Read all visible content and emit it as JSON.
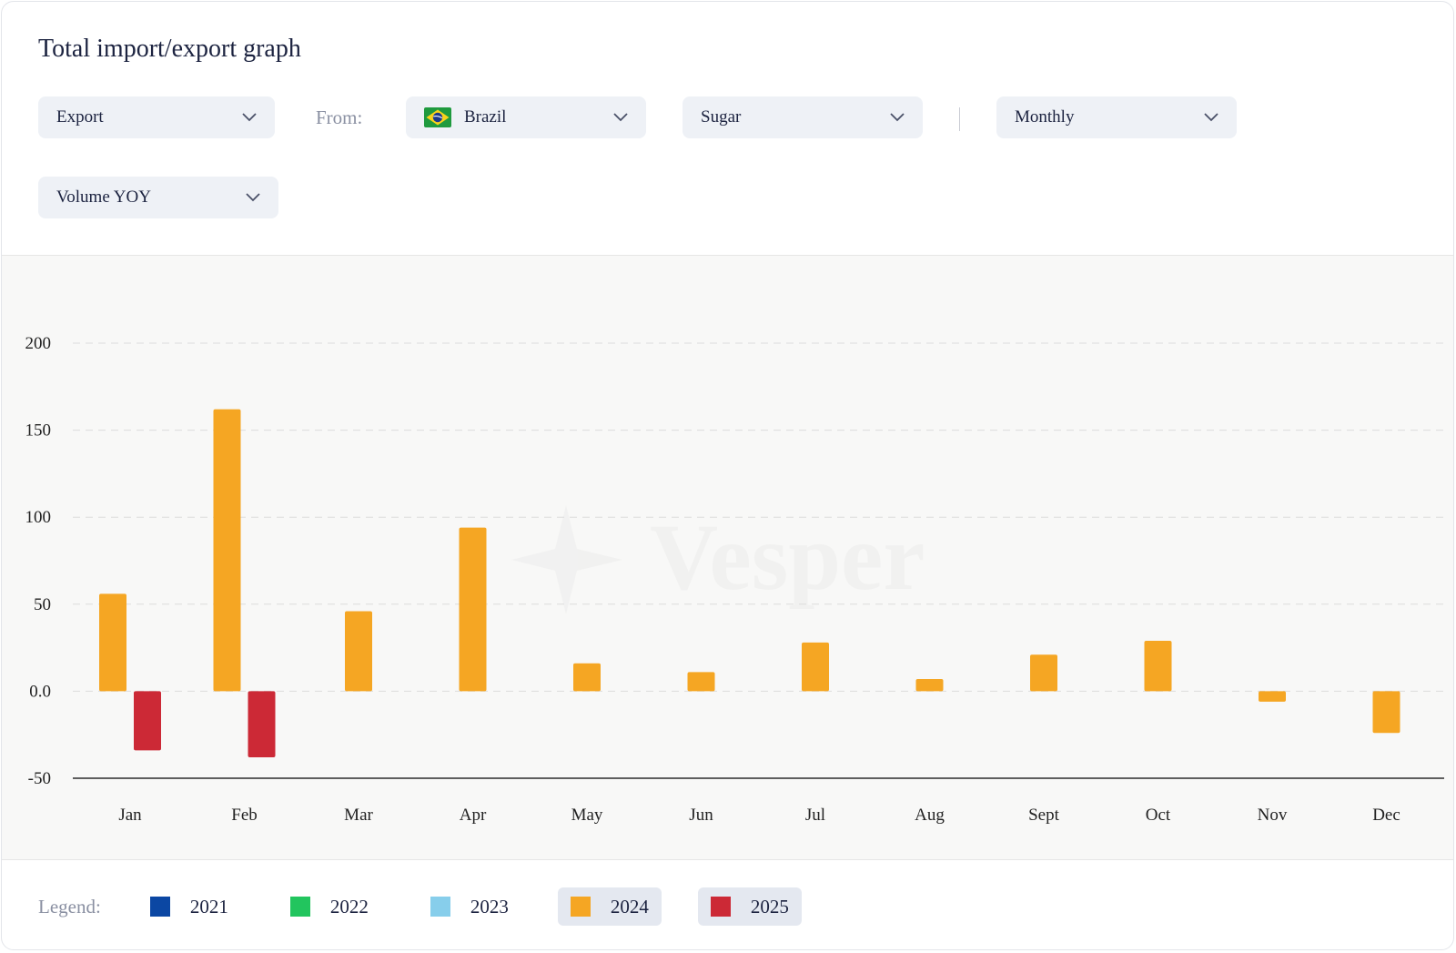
{
  "title": "Total import/export graph",
  "filters": {
    "flow": "Export",
    "from_label": "From:",
    "country": "Brazil",
    "commodity": "Sugar",
    "period": "Monthly",
    "metric": "Volume YOY"
  },
  "watermark": "Vesper",
  "legend": {
    "label": "Legend:",
    "items": [
      {
        "year": "2021",
        "color": "#0b47a3",
        "active": false
      },
      {
        "year": "2022",
        "color": "#22c55e",
        "active": false
      },
      {
        "year": "2023",
        "color": "#87ceeb",
        "active": false
      },
      {
        "year": "2024",
        "color": "#f5a623",
        "active": true
      },
      {
        "year": "2025",
        "color": "#cc2936",
        "active": true
      }
    ]
  },
  "chart_data": {
    "type": "bar",
    "categories": [
      "Jan",
      "Feb",
      "Mar",
      "Apr",
      "May",
      "Jun",
      "Jul",
      "Aug",
      "Sept",
      "Oct",
      "Nov",
      "Dec"
    ],
    "series": [
      {
        "name": "2024",
        "color": "#f5a623",
        "values": [
          56,
          162,
          46,
          94,
          16,
          11,
          28,
          7,
          21,
          29,
          -6,
          -24
        ]
      },
      {
        "name": "2025",
        "color": "#cc2936",
        "values": [
          -34,
          -38,
          null,
          null,
          null,
          null,
          null,
          null,
          null,
          null,
          null,
          null
        ]
      }
    ],
    "ylim": [
      -50,
      200
    ],
    "yticks": [
      "-50",
      "0.0",
      "50",
      "100",
      "150",
      "200"
    ],
    "grid": true
  }
}
